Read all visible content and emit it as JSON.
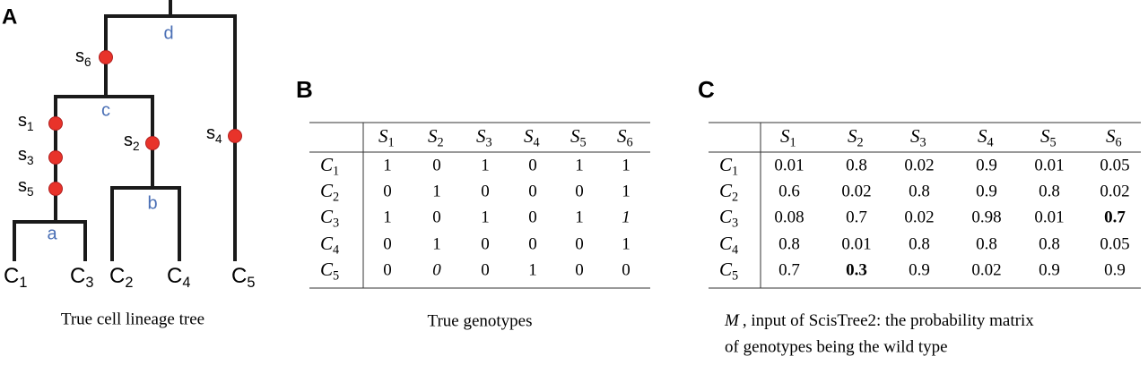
{
  "panels": {
    "a": {
      "label": "A",
      "tree": {
        "mutations": [
          {
            "base": "s",
            "sub": "6"
          },
          {
            "base": "s",
            "sub": "1"
          },
          {
            "base": "s",
            "sub": "3"
          },
          {
            "base": "s",
            "sub": "5"
          },
          {
            "base": "s",
            "sub": "2"
          },
          {
            "base": "s",
            "sub": "4"
          }
        ],
        "internal": [
          "d",
          "c",
          "b",
          "a"
        ],
        "leaves": [
          {
            "base": "C",
            "sub": "1"
          },
          {
            "base": "C",
            "sub": "3"
          },
          {
            "base": "C",
            "sub": "2"
          },
          {
            "base": "C",
            "sub": "4"
          },
          {
            "base": "C",
            "sub": "5"
          }
        ]
      },
      "caption": "True cell lineage tree"
    },
    "b": {
      "label": "B",
      "table": {
        "columns": [
          {
            "base": "S",
            "sub": "1"
          },
          {
            "base": "S",
            "sub": "2"
          },
          {
            "base": "S",
            "sub": "3"
          },
          {
            "base": "S",
            "sub": "4"
          },
          {
            "base": "S",
            "sub": "5"
          },
          {
            "base": "S",
            "sub": "6"
          }
        ],
        "rows": [
          {
            "name": {
              "base": "C",
              "sub": "1"
            },
            "cells": [
              1,
              0,
              1,
              0,
              1,
              1
            ]
          },
          {
            "name": {
              "base": "C",
              "sub": "2"
            },
            "cells": [
              0,
              1,
              0,
              0,
              0,
              1
            ]
          },
          {
            "name": {
              "base": "C",
              "sub": "3"
            },
            "cells": [
              1,
              0,
              1,
              0,
              1,
              1
            ]
          },
          {
            "name": {
              "base": "C",
              "sub": "4"
            },
            "cells": [
              0,
              1,
              0,
              0,
              0,
              1
            ]
          },
          {
            "name": {
              "base": "C",
              "sub": "5"
            },
            "cells": [
              0,
              0,
              0,
              1,
              0,
              0
            ]
          }
        ],
        "italic": [
          [
            2,
            5
          ],
          [
            4,
            1
          ]
        ]
      },
      "caption": "True genotypes"
    },
    "c": {
      "label": "C",
      "table": {
        "columns": [
          {
            "base": "S",
            "sub": "1"
          },
          {
            "base": "S",
            "sub": "2"
          },
          {
            "base": "S",
            "sub": "3"
          },
          {
            "base": "S",
            "sub": "4"
          },
          {
            "base": "S",
            "sub": "5"
          },
          {
            "base": "S",
            "sub": "6"
          }
        ],
        "rows": [
          {
            "name": {
              "base": "C",
              "sub": "1"
            },
            "cells": [
              0.01,
              0.8,
              0.02,
              0.9,
              0.01,
              0.05
            ]
          },
          {
            "name": {
              "base": "C",
              "sub": "2"
            },
            "cells": [
              0.6,
              0.02,
              0.8,
              0.9,
              0.8,
              0.02
            ]
          },
          {
            "name": {
              "base": "C",
              "sub": "3"
            },
            "cells": [
              0.08,
              0.7,
              0.02,
              0.98,
              0.01,
              0.7
            ]
          },
          {
            "name": {
              "base": "C",
              "sub": "4"
            },
            "cells": [
              0.8,
              0.01,
              0.8,
              0.8,
              0.8,
              0.05
            ]
          },
          {
            "name": {
              "base": "C",
              "sub": "5"
            },
            "cells": [
              0.7,
              0.3,
              0.9,
              0.02,
              0.9,
              0.9
            ]
          }
        ],
        "bold": [
          [
            2,
            5
          ],
          [
            4,
            1
          ]
        ]
      },
      "caption": {
        "symbol": "M",
        "line1": ", input of ScisTree2: the probability matrix",
        "line2": "of genotypes being the wild type"
      }
    }
  }
}
